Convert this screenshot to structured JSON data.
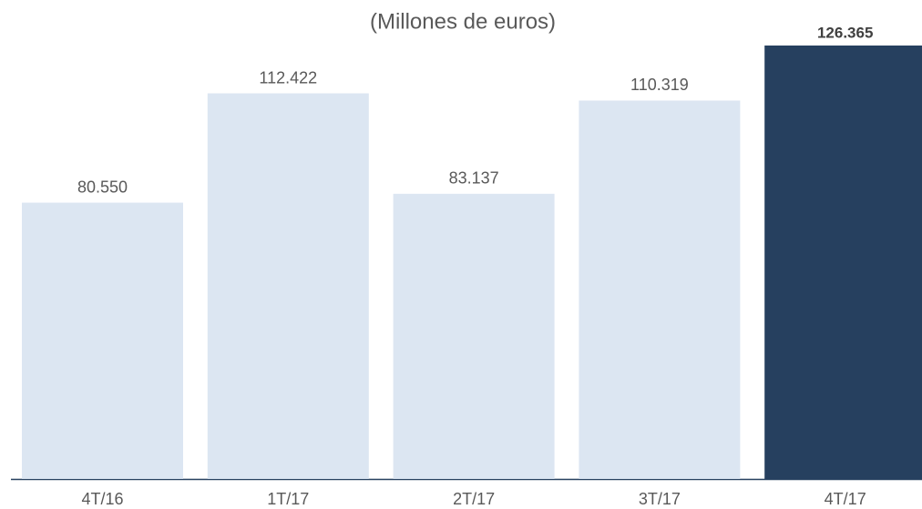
{
  "chart_data": {
    "type": "bar",
    "title": "(Millones de euros)",
    "categories": [
      "4T/16",
      "1T/17",
      "2T/17",
      "3T/17",
      "4T/17"
    ],
    "values": [
      80550,
      112422,
      83137,
      110319,
      126365
    ],
    "value_labels": [
      "80.550",
      "112.422",
      "83.137",
      "110.319",
      "126.365"
    ],
    "color": "#dce6f2",
    "highlight_color": "#26405f",
    "highlight_index": 4
  }
}
